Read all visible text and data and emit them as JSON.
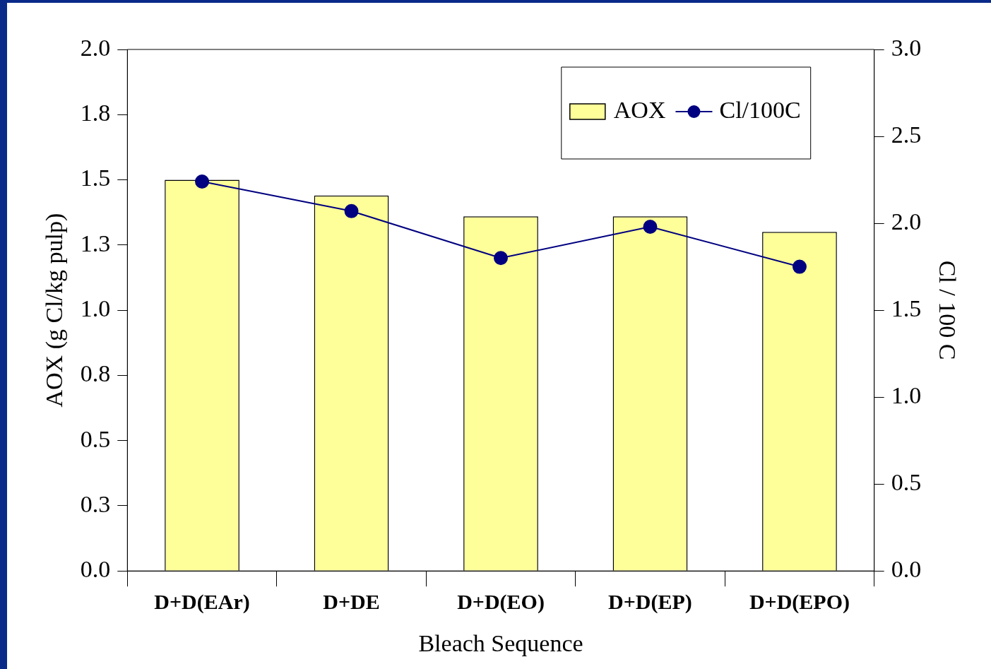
{
  "chart_data": {
    "type": "bar",
    "categories": [
      "D+D(EAr)",
      "D+DE",
      "D+D(EO)",
      "D+D(EP)",
      "D+D(EPO)"
    ],
    "series": [
      {
        "name": "AOX",
        "color": "#ffff99",
        "values": [
          1.5,
          1.44,
          1.36,
          1.36,
          1.3
        ]
      },
      {
        "name": "Cl/100C",
        "type": "line",
        "axis": "y2",
        "color": "#000080",
        "marker": "circle",
        "values": [
          2.24,
          2.07,
          1.8,
          1.98,
          1.75
        ]
      }
    ],
    "xlabel": "Bleach Sequence",
    "ylabel": "AOX (g Cl/kg pulp)",
    "y2label": "Cl / 100 C",
    "ylim": [
      0,
      2
    ],
    "yticks": [
      {
        "value": 0,
        "label": "0.0"
      },
      {
        "value": 0.25,
        "label": "0.3"
      },
      {
        "value": 0.5,
        "label": "0.5"
      },
      {
        "value": 0.75,
        "label": "0.8"
      },
      {
        "value": 1,
        "label": "1.0"
      },
      {
        "value": 1.25,
        "label": "1.3"
      },
      {
        "value": 1.5,
        "label": "1.5"
      },
      {
        "value": 1.75,
        "label": "1.8"
      },
      {
        "value": 2,
        "label": "2.0"
      }
    ],
    "y2lim": [
      0,
      3
    ],
    "y2ticks": [
      {
        "value": 0,
        "label": "0.0"
      },
      {
        "value": 0.5,
        "label": "0.5"
      },
      {
        "value": 1,
        "label": "1.0"
      },
      {
        "value": 1.5,
        "label": "1.5"
      },
      {
        "value": 2,
        "label": "2.0"
      },
      {
        "value": 2.5,
        "label": "2.5"
      },
      {
        "value": 3,
        "label": "3.0"
      }
    ],
    "grid": false,
    "legend": "top right"
  }
}
